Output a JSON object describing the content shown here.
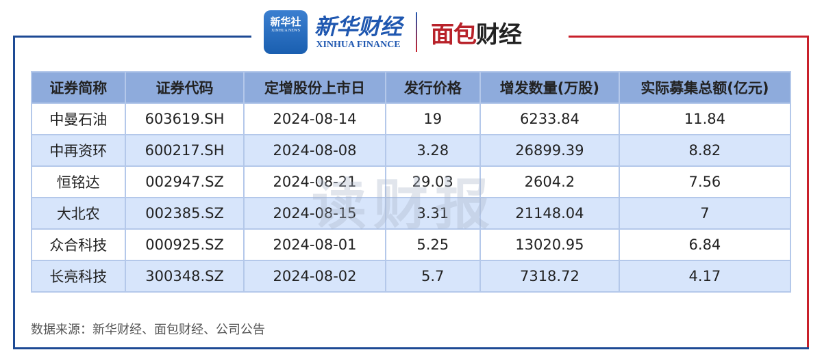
{
  "header": {
    "app_logo": "新华社",
    "app_logo_sub": "XINHUA NEWS",
    "brand_cn": "新华财经",
    "brand_en": "XINHUA FINANCE",
    "partner_a": "面包",
    "partner_b": "财经"
  },
  "watermark": "读财报",
  "table": {
    "columns": [
      "证券简称",
      "证券代码",
      "定增股份上市日",
      "发行价格",
      "增发数量(万股)",
      "实际募集总额(亿元)"
    ],
    "rows": [
      [
        "中曼石油",
        "603619.SH",
        "2024-08-14",
        "19",
        "6233.84",
        "11.84"
      ],
      [
        "中再资环",
        "600217.SH",
        "2024-08-08",
        "3.28",
        "26899.39",
        "8.82"
      ],
      [
        "恒铭达",
        "002947.SZ",
        "2024-08-21",
        "29.03",
        "2604.2",
        "7.56"
      ],
      [
        "大北农",
        "002385.SZ",
        "2024-08-15",
        "3.31",
        "21148.04",
        "7"
      ],
      [
        "众合科技",
        "000925.SZ",
        "2024-08-01",
        "5.25",
        "13020.95",
        "6.84"
      ],
      [
        "长亮科技",
        "300348.SZ",
        "2024-08-02",
        "5.7",
        "7318.72",
        "4.17"
      ]
    ]
  },
  "source": "数据来源：新华财经、面包财经、公司公告",
  "colors": {
    "header_bg": "#8eabdc",
    "alt_row": "#d7e5fb",
    "frame_blue": "#1d4a94",
    "frame_red": "#c8202a"
  }
}
